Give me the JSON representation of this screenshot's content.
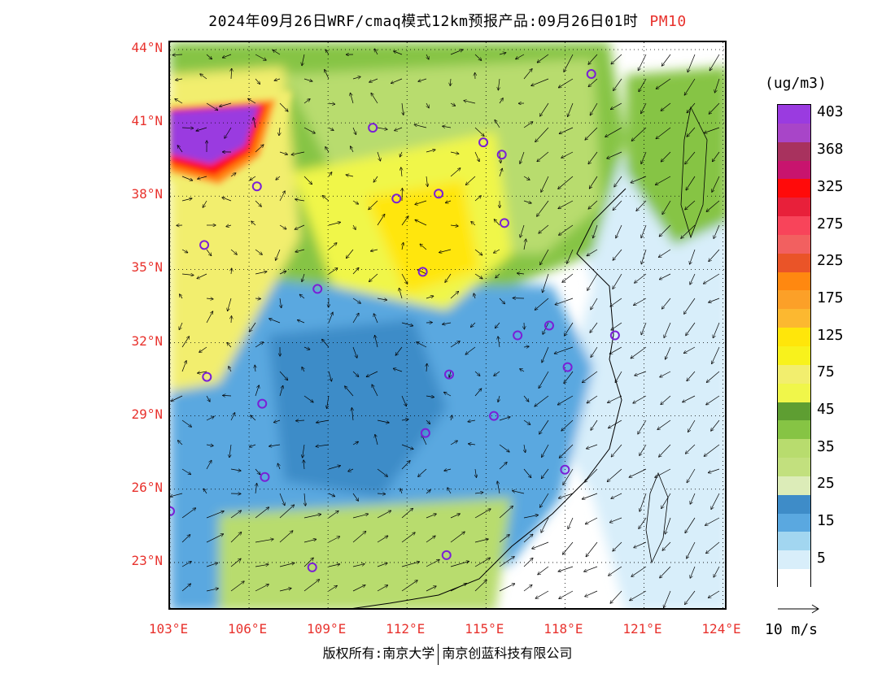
{
  "title": {
    "main": "2024年09月26日WRF/cmaq模式12km预报产品:09月26日01时",
    "species": "PM10"
  },
  "colors": {
    "label_red": "#e8322d",
    "border": "#000000",
    "station_marker": "#7a1fd6"
  },
  "map": {
    "lat_labels": [
      "44°N",
      "41°N",
      "38°N",
      "35°N",
      "32°N",
      "29°N",
      "26°N",
      "23°N"
    ],
    "lon_labels": [
      "103°E",
      "106°E",
      "109°E",
      "112°E",
      "115°E",
      "118°E",
      "121°E",
      "124°E"
    ],
    "lat_values": [
      44,
      41,
      38,
      35,
      32,
      29,
      26,
      23
    ],
    "lon_values": [
      103,
      106,
      109,
      112,
      115,
      118,
      121,
      124
    ],
    "extent": {
      "lon_min": 103,
      "lon_max": 124.2,
      "lat_min": 21.0,
      "lat_max": 44.3
    },
    "stations": [
      {
        "lon": 119.0,
        "lat": 43.0
      },
      {
        "lon": 110.7,
        "lat": 40.8
      },
      {
        "lon": 114.9,
        "lat": 40.2
      },
      {
        "lon": 115.6,
        "lat": 39.7
      },
      {
        "lon": 106.3,
        "lat": 38.4
      },
      {
        "lon": 111.6,
        "lat": 37.9
      },
      {
        "lon": 113.2,
        "lat": 38.1
      },
      {
        "lon": 115.7,
        "lat": 36.9
      },
      {
        "lon": 104.3,
        "lat": 36.0
      },
      {
        "lon": 112.6,
        "lat": 34.9
      },
      {
        "lon": 108.6,
        "lat": 34.2
      },
      {
        "lon": 116.2,
        "lat": 32.3
      },
      {
        "lon": 117.4,
        "lat": 32.7
      },
      {
        "lon": 119.9,
        "lat": 32.3
      },
      {
        "lon": 118.1,
        "lat": 31.0
      },
      {
        "lon": 104.4,
        "lat": 30.6
      },
      {
        "lon": 113.6,
        "lat": 30.7
      },
      {
        "lon": 106.5,
        "lat": 29.5
      },
      {
        "lon": 115.3,
        "lat": 29.0
      },
      {
        "lon": 112.7,
        "lat": 28.3
      },
      {
        "lon": 106.6,
        "lat": 26.5
      },
      {
        "lon": 118.0,
        "lat": 26.8
      },
      {
        "lon": 103.0,
        "lat": 25.1
      },
      {
        "lon": 108.4,
        "lat": 22.8
      },
      {
        "lon": 113.5,
        "lat": 23.3
      }
    ]
  },
  "legend": {
    "unit": "(ug/m3)",
    "levels": [
      {
        "label": "403",
        "color": "#9a3be0"
      },
      {
        "label": "",
        "color": "#a845c8"
      },
      {
        "label": "368",
        "color": "#a8325e"
      },
      {
        "label": "",
        "color": "#c8146e"
      },
      {
        "label": "325",
        "color": "#ff0a0a"
      },
      {
        "label": "",
        "color": "#e8203a"
      },
      {
        "label": "275",
        "color": "#f8445a"
      },
      {
        "label": "",
        "color": "#f26060"
      },
      {
        "label": "225",
        "color": "#ea5428"
      },
      {
        "label": "",
        "color": "#ff8810"
      },
      {
        "label": "175",
        "color": "#fca028"
      },
      {
        "label": "",
        "color": "#fcb830"
      },
      {
        "label": "125",
        "color": "#ffe60a"
      },
      {
        "label": "",
        "color": "#f8f21c"
      },
      {
        "label": "75",
        "color": "#f2ee6e"
      },
      {
        "label": "",
        "color": "#f0f64a"
      },
      {
        "label": "45",
        "color": "#5e9e32"
      },
      {
        "label": "",
        "color": "#86c444"
      },
      {
        "label": "35",
        "color": "#b8dc6e"
      },
      {
        "label": "",
        "color": "#c2e07e"
      },
      {
        "label": "25",
        "color": "#dcecb8"
      },
      {
        "label": "",
        "color": "#3e8cc8"
      },
      {
        "label": "15",
        "color": "#5aa8e0"
      },
      {
        "label": "",
        "color": "#a2d6f0"
      },
      {
        "label": "5",
        "color": "#d8eefa"
      },
      {
        "label": "",
        "color": "#ffffff"
      }
    ]
  },
  "wind_reference": {
    "label": "10 m/s"
  },
  "footer": {
    "left": "版权所有:南京大学",
    "right": "南京创蓝科技有限公司"
  }
}
